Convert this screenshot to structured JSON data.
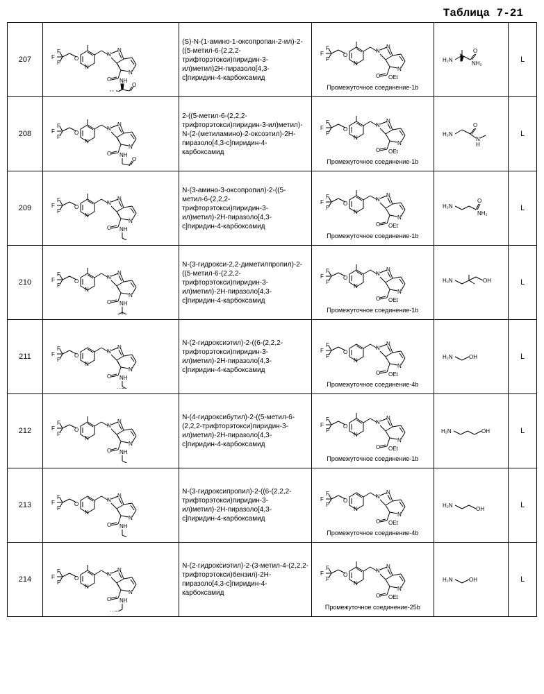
{
  "table_title": "Таблица 7-21",
  "rows": [
    {
      "id": "207",
      "name": "(S)-N-(1-амино-1-оксопропан-2-ил)-2-((5-метил-6-(2,2,2-трифторэтокси)пиридин-3-ил)метил)2H-пиразоло[4,3-c]пиридин-4-карбоксамид",
      "intermediate_label": "Промежуточное соединение-1b",
      "code": "L"
    },
    {
      "id": "208",
      "name": "2-((5-метил-6-(2,2,2-трифторэтокси)пиридин-3-ил)метил)-N-(2-(метиламино)-2-оксоэтил)-2H-пиразоло[4,3-c]пиридин-4-карбоксамид",
      "intermediate_label": "Промежуточное соединение-1b",
      "code": "L"
    },
    {
      "id": "209",
      "name": "N-(3-амино-3-оксопропил)-2-((5-метил-6-(2,2,2-трифторэтокси)пиридин-3-ил)метил)-2H-пиразоло[4,3-c]пиридин-4-карбоксамид",
      "intermediate_label": "Промежуточное соединение-1b",
      "code": "L"
    },
    {
      "id": "210",
      "name": "N-(3-гидрокси-2,2-диметилпропил)-2-((5-метил-6-(2,2,2-трифторэтокси)пиридин-3-ил)метил)-2H-пиразоло[4,3-c]пиридин-4-карбоксамид",
      "intermediate_label": "Промежуточное соединение-1b",
      "code": "L"
    },
    {
      "id": "211",
      "name": "N-(2-гидроксиэтил)-2-((6-(2,2,2-трифторэтокси)пиридин-3-ил)метил)-2H-пиразоло[4,3-c]пиридин-4-карбоксамид",
      "intermediate_label": "Промежуточное соединение-4b",
      "code": "L"
    },
    {
      "id": "212",
      "name": "N-(4-гидроксибутил)-2-((5-метил-6-(2,2,2-трифторэтокси)пиридин-3-ил)метил)-2H-пиразоло[4,3-c]пиридин-4-карбоксамид",
      "intermediate_label": "Промежуточное соединение-1b",
      "code": "L"
    },
    {
      "id": "213",
      "name": "N-(3-гидроксипропил)-2-((6-(2,2,2-трифторэтокси)пиридин-3-ил)метил)-2H-пиразоло[4,3-c]пиридин-4-карбоксамид",
      "intermediate_label": "Промежуточное соединение-4b",
      "code": "L"
    },
    {
      "id": "214",
      "name": "N-(2-гидроксиэтил)-2-(3-метил-4-(2,2,2-трифторэтокси)бензил)-2H-пиразоло[4,3-c]пиридин-4-карбоксамид",
      "intermediate_label": "Промежуточное соединение-25b",
      "code": "L"
    }
  ]
}
